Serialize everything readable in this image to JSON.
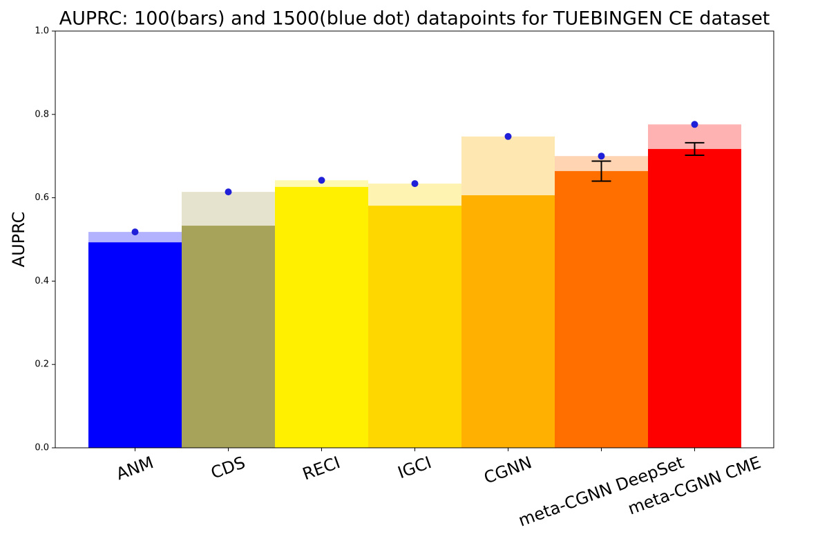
{
  "chart_data": {
    "type": "bar",
    "title": "AUPRC: 100(bars) and 1500(blue dot) datapoints for TUEBINGEN CE dataset",
    "y_label": "AUPRC",
    "categories": [
      "ANM",
      "CDS",
      "RECI",
      "IGCI",
      "CGNN",
      "meta-CGNN DeepSet",
      "meta-CGNN CME"
    ],
    "values": [
      0.493,
      0.533,
      0.626,
      0.581,
      0.606,
      0.664,
      0.717
    ],
    "errors": [
      null,
      null,
      null,
      null,
      null,
      0.024,
      0.015
    ],
    "dot_values": [
      0.518,
      0.614,
      0.642,
      0.634,
      0.747,
      0.7,
      0.776
    ],
    "colors": [
      "#0000ff",
      "#a8a35a",
      "#fff000",
      "#ffd700",
      "#ffb000",
      "#ff6f00",
      "#ff0000"
    ],
    "dot_color": "#2020d8",
    "ylim": [
      0,
      1
    ],
    "yticks": [
      {
        "value": 0,
        "label": "0.0"
      },
      {
        "value": 0.2,
        "label": "0.2"
      },
      {
        "value": 0.4,
        "label": "0.4"
      },
      {
        "value": 0.6,
        "label": "0.6"
      },
      {
        "value": 0.8,
        "label": "0.8"
      },
      {
        "value": 1,
        "label": "1.0"
      }
    ]
  }
}
